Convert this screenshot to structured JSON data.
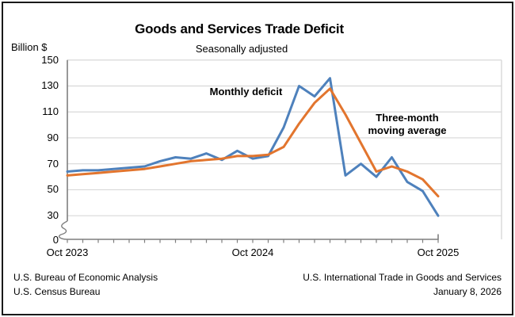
{
  "header": {
    "unit_label": "Billion $"
  },
  "legend": {
    "monthly": "Monthly deficit",
    "ma_line1": "Three-month",
    "ma_line2": "moving average"
  },
  "footer": {
    "left_line1": "U.S. Bureau of Economic Analysis",
    "left_line2": "U.S. Census Bureau",
    "right_line1": "U.S. International Trade in Goods and Services",
    "right_line2": "January 8, 2026"
  },
  "colors": {
    "monthly_blue": "#4E81BC",
    "moving_avg_orange": "#E2752E",
    "gridline": "#D8D8D8",
    "axis": "#7F7F7F",
    "text": "#000000"
  },
  "chart_data": {
    "type": "line",
    "title": "Goods and Services Trade Deficit",
    "subtitle": "Seasonally adjusted",
    "ylabel": "Billion $",
    "grid": true,
    "y_axis_break": true,
    "y_ticks": [
      150,
      130,
      110,
      90,
      70,
      50,
      30,
      0
    ],
    "ylim_displayed": [
      30,
      150
    ],
    "legend_position": "inline-annotations",
    "categories": [
      "Oct 2023",
      "Nov 2023",
      "Dec 2023",
      "Jan 2024",
      "Feb 2024",
      "Mar 2024",
      "Apr 2024",
      "May 2024",
      "Jun 2024",
      "Jul 2024",
      "Aug 2024",
      "Sep 2024",
      "Oct 2024",
      "Nov 2024",
      "Dec 2024",
      "Jan 2025",
      "Feb 2025",
      "Mar 2025",
      "Apr 2025",
      "May 2025",
      "Jun 2025",
      "Jul 2025",
      "Aug 2025",
      "Sep 2025",
      "Oct 2025"
    ],
    "x_tick_labels": [
      {
        "label": "Oct 2023",
        "month_index": 0
      },
      {
        "label": "Oct 2024",
        "month_index": 12
      },
      {
        "label": "Oct 2025",
        "month_index": 24
      }
    ],
    "series": [
      {
        "name": "Monthly deficit",
        "color": "#4E81BC",
        "values": [
          64,
          65,
          65,
          66,
          67,
          68,
          72,
          75,
          74,
          78,
          73,
          80,
          74,
          76,
          98,
          130,
          122,
          136,
          61,
          70,
          60,
          75,
          56,
          49,
          30
        ]
      },
      {
        "name": "Three-month moving average",
        "color": "#E2752E",
        "values": [
          61,
          62,
          63,
          64,
          65,
          66,
          68,
          70,
          72,
          73,
          74,
          76,
          76,
          77,
          83,
          101,
          117,
          128,
          108,
          86,
          64,
          68,
          64,
          58,
          45
        ]
      }
    ]
  }
}
